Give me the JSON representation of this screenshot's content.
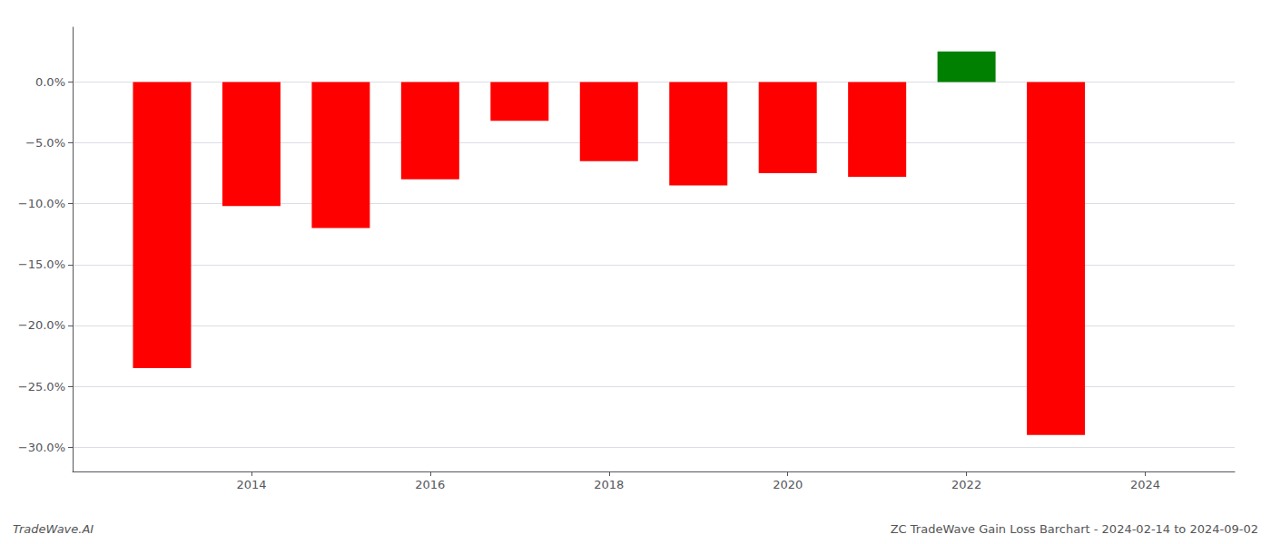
{
  "chart_data": {
    "type": "bar",
    "x": [
      2013,
      2014,
      2015,
      2016,
      2017,
      2018,
      2019,
      2020,
      2021,
      2022,
      2023
    ],
    "values": [
      -23.5,
      -10.2,
      -12.0,
      -8.0,
      -3.2,
      -6.5,
      -8.5,
      -7.5,
      -7.8,
      2.5,
      -29.0
    ],
    "colors": [
      "#ff0000",
      "#ff0000",
      "#ff0000",
      "#ff0000",
      "#ff0000",
      "#ff0000",
      "#ff0000",
      "#ff0000",
      "#ff0000",
      "#008000",
      "#ff0000"
    ],
    "xlim": [
      2012.0,
      2025.0
    ],
    "xticks": [
      2014,
      2016,
      2018,
      2020,
      2022,
      2024
    ],
    "ylim": [
      -32,
      4.5
    ],
    "yticks": [
      {
        "value": 0,
        "label": "0.0%"
      },
      {
        "value": -5,
        "label": "−5.0%"
      },
      {
        "value": -10,
        "label": "−10.0%"
      },
      {
        "value": -15,
        "label": "−15.0%"
      },
      {
        "value": -20,
        "label": "−20.0%"
      },
      {
        "value": -25,
        "label": "−25.0%"
      },
      {
        "value": -30,
        "label": "−30.0%"
      }
    ],
    "grid": true,
    "annotations": [
      "TradeWave.AI",
      "ZC TradeWave Gain Loss Barchart - 2024-02-14 to 2024-09-02"
    ]
  }
}
